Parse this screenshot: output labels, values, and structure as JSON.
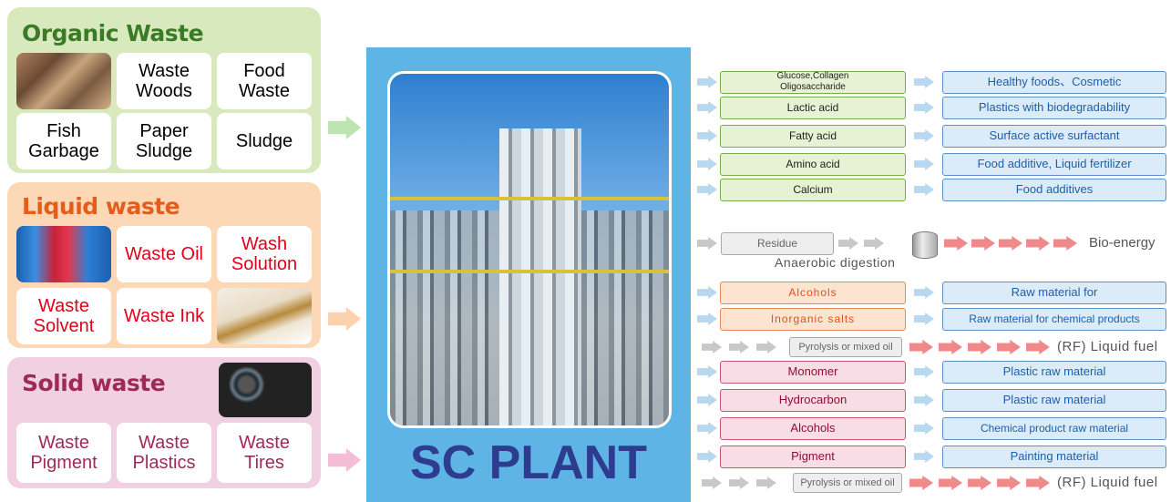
{
  "panels": [
    {
      "title": "Organic Waste",
      "items": [
        "Waste Woods",
        "Food Waste",
        "Fish Garbage",
        "Paper Sludge",
        "Sludge"
      ]
    },
    {
      "title": "Liquid waste",
      "items": [
        "Waste Oil",
        "Wash Solution",
        "Waste Solvent",
        "Waste Ink"
      ]
    },
    {
      "title": "Solid waste",
      "items": [
        "Waste Pigment",
        "Waste Plastics",
        "Waste Tires"
      ]
    }
  ],
  "plant": {
    "label": "SC PLANT"
  },
  "outputs": {
    "sugar_rows": [
      {
        "input": "Glucose,Collagen Oligosaccharide",
        "output": "Healthy foods、Cosmetic"
      },
      {
        "input": "Lactic acid",
        "output": "Plastics with biodegradability"
      },
      {
        "input": "Fatty acid",
        "output": "Surface active surfactant"
      },
      {
        "input": "Amino acid",
        "output": "Food additive, Liquid fertilizer"
      },
      {
        "input": "Calcium",
        "output": "Food additives"
      }
    ],
    "residue": {
      "input": "Residue",
      "process": "Anaerobic digestion",
      "output": "Bio-energy"
    },
    "liquid_rows": [
      {
        "input": "Alcohols",
        "output": "Raw material for"
      },
      {
        "input": "Inorganic salts",
        "output": "Raw material for chemical products"
      }
    ],
    "liquid_pyrolysis": {
      "input": "Pyrolysis or mixed oil",
      "output": "(RF) Liquid fuel"
    },
    "solid_rows": [
      {
        "input": "Monomer",
        "output": "Plastic raw material"
      },
      {
        "input": "Hydrocarbon",
        "output": "Plastic raw material"
      },
      {
        "input": "Alcohols",
        "output": "Chemical product raw material"
      },
      {
        "input": "Pigment",
        "output": "Painting material"
      }
    ],
    "solid_pyrolysis": {
      "input": "Pyrolysis or mixed oil",
      "output": "(RF) Liquid fuel"
    }
  }
}
